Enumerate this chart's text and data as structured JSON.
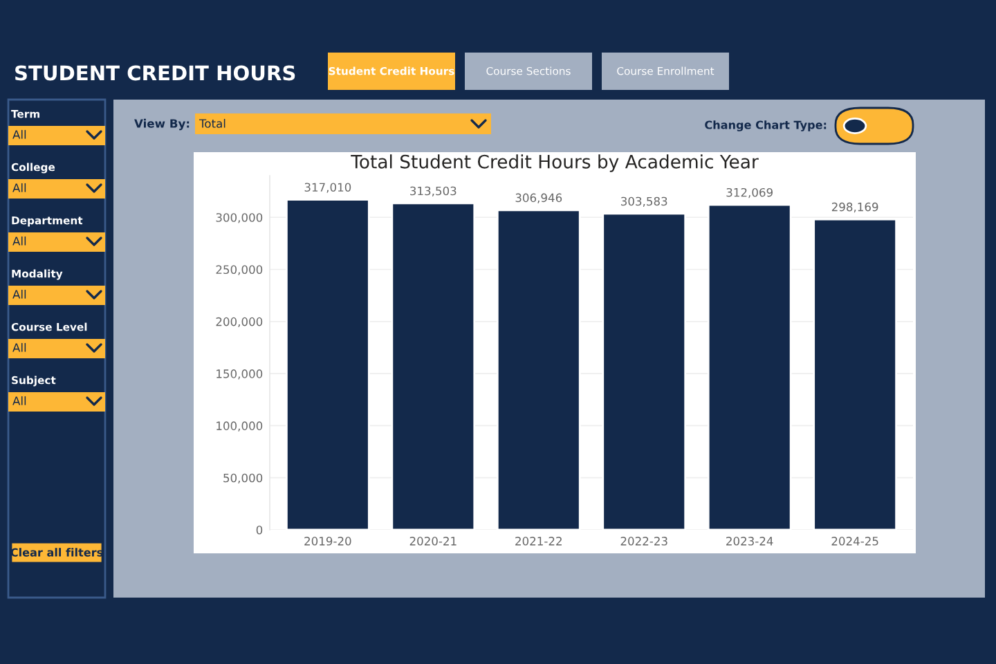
{
  "chart_data": {
    "type": "bar",
    "title": "Total Student Credit Hours by Academic Year",
    "categories": [
      "2019-20",
      "2020-21",
      "2021-22",
      "2022-23",
      "2023-24",
      "2024-25"
    ],
    "values": [
      317010,
      313503,
      306946,
      303583,
      312069,
      298169
    ],
    "value_labels": [
      "317,010",
      "313,503",
      "306,946",
      "303,583",
      "312,069",
      "298,169"
    ],
    "color": "#13294b",
    "ylim": [
      0,
      340000
    ],
    "yticks": [
      {
        "value": 0,
        "label": "0"
      },
      {
        "value": 50000,
        "label": "50,000"
      },
      {
        "value": 100000,
        "label": "100,000"
      },
      {
        "value": 150000,
        "label": "150,000"
      },
      {
        "value": 200000,
        "label": "200,000"
      },
      {
        "value": 250000,
        "label": "250,000"
      },
      {
        "value": 300000,
        "label": "300,000"
      }
    ],
    "grid": "y",
    "annotations": [
      "STUDENT CREDIT HOURS",
      "Student Credit Hours",
      "Course Sections",
      "Course Enrollment",
      "Term",
      "All",
      "College",
      "All",
      "Department",
      "All",
      "Modality",
      "All",
      "Course Level",
      "All",
      "Subject",
      "All",
      "Clear all filters",
      "View By:",
      "Total",
      "Change Chart Type:"
    ]
  }
}
